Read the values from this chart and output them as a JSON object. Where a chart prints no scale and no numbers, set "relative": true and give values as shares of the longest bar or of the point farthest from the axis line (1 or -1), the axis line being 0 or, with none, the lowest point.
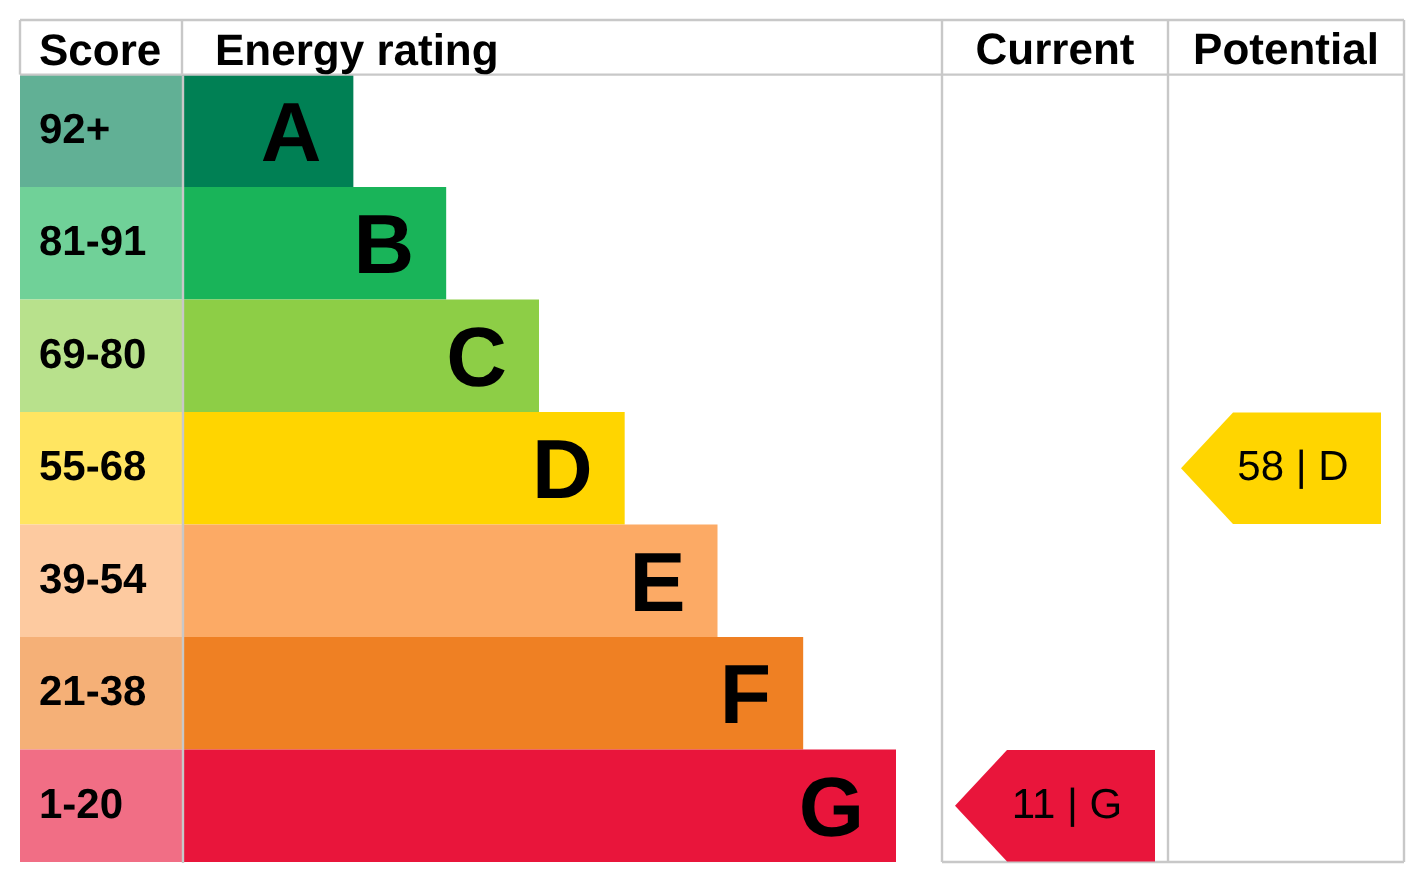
{
  "chart_data": {
    "type": "bar",
    "orientation": "horizontal",
    "relative": true,
    "xlabel": "Energy rating",
    "ylabel": "Score",
    "categories": [
      "92+",
      "81-91",
      "69-80",
      "55-68",
      "39-54",
      "21-38",
      "1-20"
    ],
    "values": [
      0.24,
      0.37,
      0.5,
      0.62,
      0.75,
      0.87,
      1
    ],
    "colors": [
      "#008054",
      "#19b459",
      "#8dce46",
      "#ffd500",
      "#fcaa65",
      "#ef8023",
      "#e9153b"
    ],
    "annotations": [
      {
        "text": "A",
        "x": 0.24,
        "y": "92+"
      },
      {
        "text": "B",
        "x": 0.37,
        "y": "81-91"
      },
      {
        "text": "C",
        "x": 0.5,
        "y": "69-80"
      },
      {
        "text": "D",
        "x": 0.62,
        "y": "55-68"
      },
      {
        "text": "E",
        "x": 0.75,
        "y": "39-54"
      },
      {
        "text": "F",
        "x": 0.87,
        "y": "21-38"
      },
      {
        "text": "G",
        "x": 1,
        "y": "1-20"
      },
      "Current",
      "11 | G",
      "Potential",
      "58 | D"
    ]
  }
}
